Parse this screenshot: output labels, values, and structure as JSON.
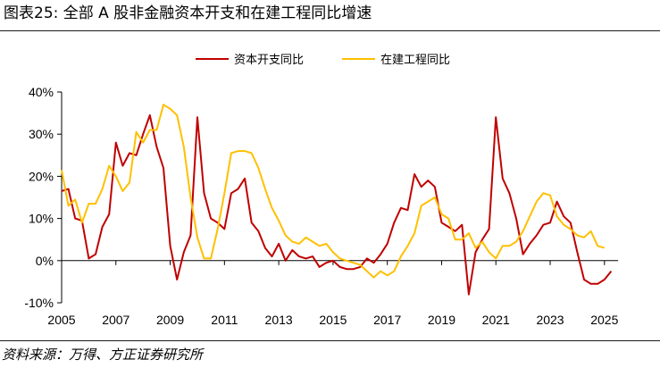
{
  "header": {
    "title": "图表25: 全部 A 股非金融资本开支和在建工程同比增速"
  },
  "footer": {
    "source": "资料来源：万得、方正证券研究所"
  },
  "colors": {
    "capex": "#c00000",
    "construction": "#ffc000",
    "axis": "#000000"
  },
  "chart_data": {
    "type": "line",
    "title": "",
    "xlabel": "",
    "ylabel": "",
    "ylim": [
      -10,
      40
    ],
    "xlim": [
      2005,
      2025.5
    ],
    "yticks": [
      -10,
      0,
      10,
      20,
      30,
      40
    ],
    "ytick_labels": [
      "-10%",
      "0%",
      "10%",
      "20%",
      "30%",
      "40%"
    ],
    "xticks": [
      2005,
      2007,
      2009,
      2011,
      2013,
      2015,
      2017,
      2019,
      2021,
      2023,
      2025
    ],
    "xtick_labels": [
      "2005",
      "2007",
      "2009",
      "2011",
      "2013",
      "2015",
      "2017",
      "2019",
      "2021",
      "2023",
      "2025"
    ],
    "grid": false,
    "legend_position": "top-center",
    "series": [
      {
        "name": "资本开支同比",
        "color": "#c00000",
        "points": [
          [
            2005.0,
            16.5
          ],
          [
            2005.25,
            17.0
          ],
          [
            2005.5,
            10.0
          ],
          [
            2005.75,
            9.5
          ],
          [
            2006.0,
            0.5
          ],
          [
            2006.25,
            1.5
          ],
          [
            2006.5,
            8.0
          ],
          [
            2006.75,
            11.0
          ],
          [
            2007.0,
            28.0
          ],
          [
            2007.25,
            22.5
          ],
          [
            2007.5,
            25.5
          ],
          [
            2007.75,
            25.0
          ],
          [
            2008.0,
            30.0
          ],
          [
            2008.25,
            34.5
          ],
          [
            2008.5,
            27.0
          ],
          [
            2008.75,
            22.0
          ],
          [
            2009.0,
            3.5
          ],
          [
            2009.25,
            -4.5
          ],
          [
            2009.5,
            2.0
          ],
          [
            2009.75,
            6.0
          ],
          [
            2010.0,
            34.0
          ],
          [
            2010.25,
            16.0
          ],
          [
            2010.5,
            10.0
          ],
          [
            2010.75,
            9.0
          ],
          [
            2011.0,
            7.5
          ],
          [
            2011.25,
            16.0
          ],
          [
            2011.5,
            17.0
          ],
          [
            2011.75,
            19.5
          ],
          [
            2012.0,
            9.0
          ],
          [
            2012.25,
            7.0
          ],
          [
            2012.5,
            3.0
          ],
          [
            2012.75,
            1.0
          ],
          [
            2013.0,
            4.0
          ],
          [
            2013.25,
            0.0
          ],
          [
            2013.5,
            2.5
          ],
          [
            2013.75,
            1.0
          ],
          [
            2014.0,
            0.5
          ],
          [
            2014.25,
            1.0
          ],
          [
            2014.5,
            -1.5
          ],
          [
            2014.75,
            -0.5
          ],
          [
            2015.0,
            0.0
          ],
          [
            2015.25,
            -1.5
          ],
          [
            2015.5,
            -2.0
          ],
          [
            2015.75,
            -2.0
          ],
          [
            2016.0,
            -1.5
          ],
          [
            2016.25,
            0.5
          ],
          [
            2016.5,
            -0.5
          ],
          [
            2016.75,
            1.5
          ],
          [
            2017.0,
            4.0
          ],
          [
            2017.25,
            9.0
          ],
          [
            2017.5,
            12.5
          ],
          [
            2017.75,
            12.0
          ],
          [
            2018.0,
            20.5
          ],
          [
            2018.25,
            17.5
          ],
          [
            2018.5,
            19.0
          ],
          [
            2018.75,
            17.5
          ],
          [
            2019.0,
            9.0
          ],
          [
            2019.25,
            8.0
          ],
          [
            2019.5,
            7.0
          ],
          [
            2019.75,
            8.5
          ],
          [
            2020.0,
            -8.0
          ],
          [
            2020.25,
            2.0
          ],
          [
            2020.5,
            5.0
          ],
          [
            2020.75,
            7.5
          ],
          [
            2021.0,
            34.0
          ],
          [
            2021.25,
            19.5
          ],
          [
            2021.5,
            16.0
          ],
          [
            2021.75,
            10.0
          ],
          [
            2022.0,
            1.5
          ],
          [
            2022.25,
            4.0
          ],
          [
            2022.5,
            6.0
          ],
          [
            2022.75,
            8.5
          ],
          [
            2023.0,
            9.0
          ],
          [
            2023.25,
            14.0
          ],
          [
            2023.5,
            10.5
          ],
          [
            2023.75,
            9.0
          ],
          [
            2024.0,
            2.0
          ],
          [
            2024.25,
            -4.5
          ],
          [
            2024.5,
            -5.5
          ],
          [
            2024.75,
            -5.5
          ],
          [
            2025.0,
            -4.5
          ],
          [
            2025.25,
            -2.5
          ]
        ]
      },
      {
        "name": "在建工程同比",
        "color": "#ffc000",
        "points": [
          [
            2005.0,
            21.5
          ],
          [
            2005.25,
            13.0
          ],
          [
            2005.5,
            14.5
          ],
          [
            2005.75,
            9.0
          ],
          [
            2006.0,
            13.5
          ],
          [
            2006.25,
            13.5
          ],
          [
            2006.5,
            17.0
          ],
          [
            2006.75,
            22.5
          ],
          [
            2007.0,
            20.0
          ],
          [
            2007.25,
            16.5
          ],
          [
            2007.5,
            18.5
          ],
          [
            2007.75,
            30.5
          ],
          [
            2008.0,
            28.0
          ],
          [
            2008.25,
            31.0
          ],
          [
            2008.5,
            31.0
          ],
          [
            2008.75,
            37.0
          ],
          [
            2009.0,
            36.0
          ],
          [
            2009.25,
            34.5
          ],
          [
            2009.5,
            27.0
          ],
          [
            2009.75,
            15.0
          ],
          [
            2010.0,
            5.5
          ],
          [
            2010.25,
            0.5
          ],
          [
            2010.5,
            0.5
          ],
          [
            2010.75,
            7.5
          ],
          [
            2011.0,
            16.0
          ],
          [
            2011.25,
            25.5
          ],
          [
            2011.5,
            26.0
          ],
          [
            2011.75,
            26.0
          ],
          [
            2012.0,
            25.5
          ],
          [
            2012.25,
            22.0
          ],
          [
            2012.5,
            17.0
          ],
          [
            2012.75,
            12.5
          ],
          [
            2013.0,
            9.5
          ],
          [
            2013.25,
            6.0
          ],
          [
            2013.5,
            4.5
          ],
          [
            2013.75,
            4.0
          ],
          [
            2014.0,
            5.5
          ],
          [
            2014.25,
            4.5
          ],
          [
            2014.5,
            3.5
          ],
          [
            2014.75,
            4.0
          ],
          [
            2015.0,
            2.0
          ],
          [
            2015.25,
            0.5
          ],
          [
            2015.5,
            0.0
          ],
          [
            2015.75,
            -0.5
          ],
          [
            2016.0,
            -1.0
          ],
          [
            2016.25,
            -2.5
          ],
          [
            2016.5,
            -4.0
          ],
          [
            2016.75,
            -2.5
          ],
          [
            2017.0,
            -3.5
          ],
          [
            2017.25,
            -2.5
          ],
          [
            2017.5,
            1.0
          ],
          [
            2017.75,
            3.5
          ],
          [
            2018.0,
            6.5
          ],
          [
            2018.25,
            13.0
          ],
          [
            2018.5,
            14.0
          ],
          [
            2018.75,
            15.0
          ],
          [
            2019.0,
            11.0
          ],
          [
            2019.25,
            10.0
          ],
          [
            2019.5,
            5.0
          ],
          [
            2019.75,
            5.0
          ],
          [
            2020.0,
            6.5
          ],
          [
            2020.25,
            3.0
          ],
          [
            2020.5,
            4.5
          ],
          [
            2020.75,
            2.0
          ],
          [
            2021.0,
            0.5
          ],
          [
            2021.25,
            3.5
          ],
          [
            2021.5,
            3.5
          ],
          [
            2021.75,
            4.5
          ],
          [
            2022.0,
            7.0
          ],
          [
            2022.25,
            10.5
          ],
          [
            2022.5,
            14.0
          ],
          [
            2022.75,
            16.0
          ],
          [
            2023.0,
            15.5
          ],
          [
            2023.25,
            10.5
          ],
          [
            2023.5,
            8.5
          ],
          [
            2023.75,
            7.5
          ],
          [
            2024.0,
            6.0
          ],
          [
            2024.25,
            5.5
          ],
          [
            2024.5,
            7.0
          ],
          [
            2024.75,
            3.5
          ],
          [
            2025.0,
            3.0
          ]
        ]
      }
    ]
  }
}
